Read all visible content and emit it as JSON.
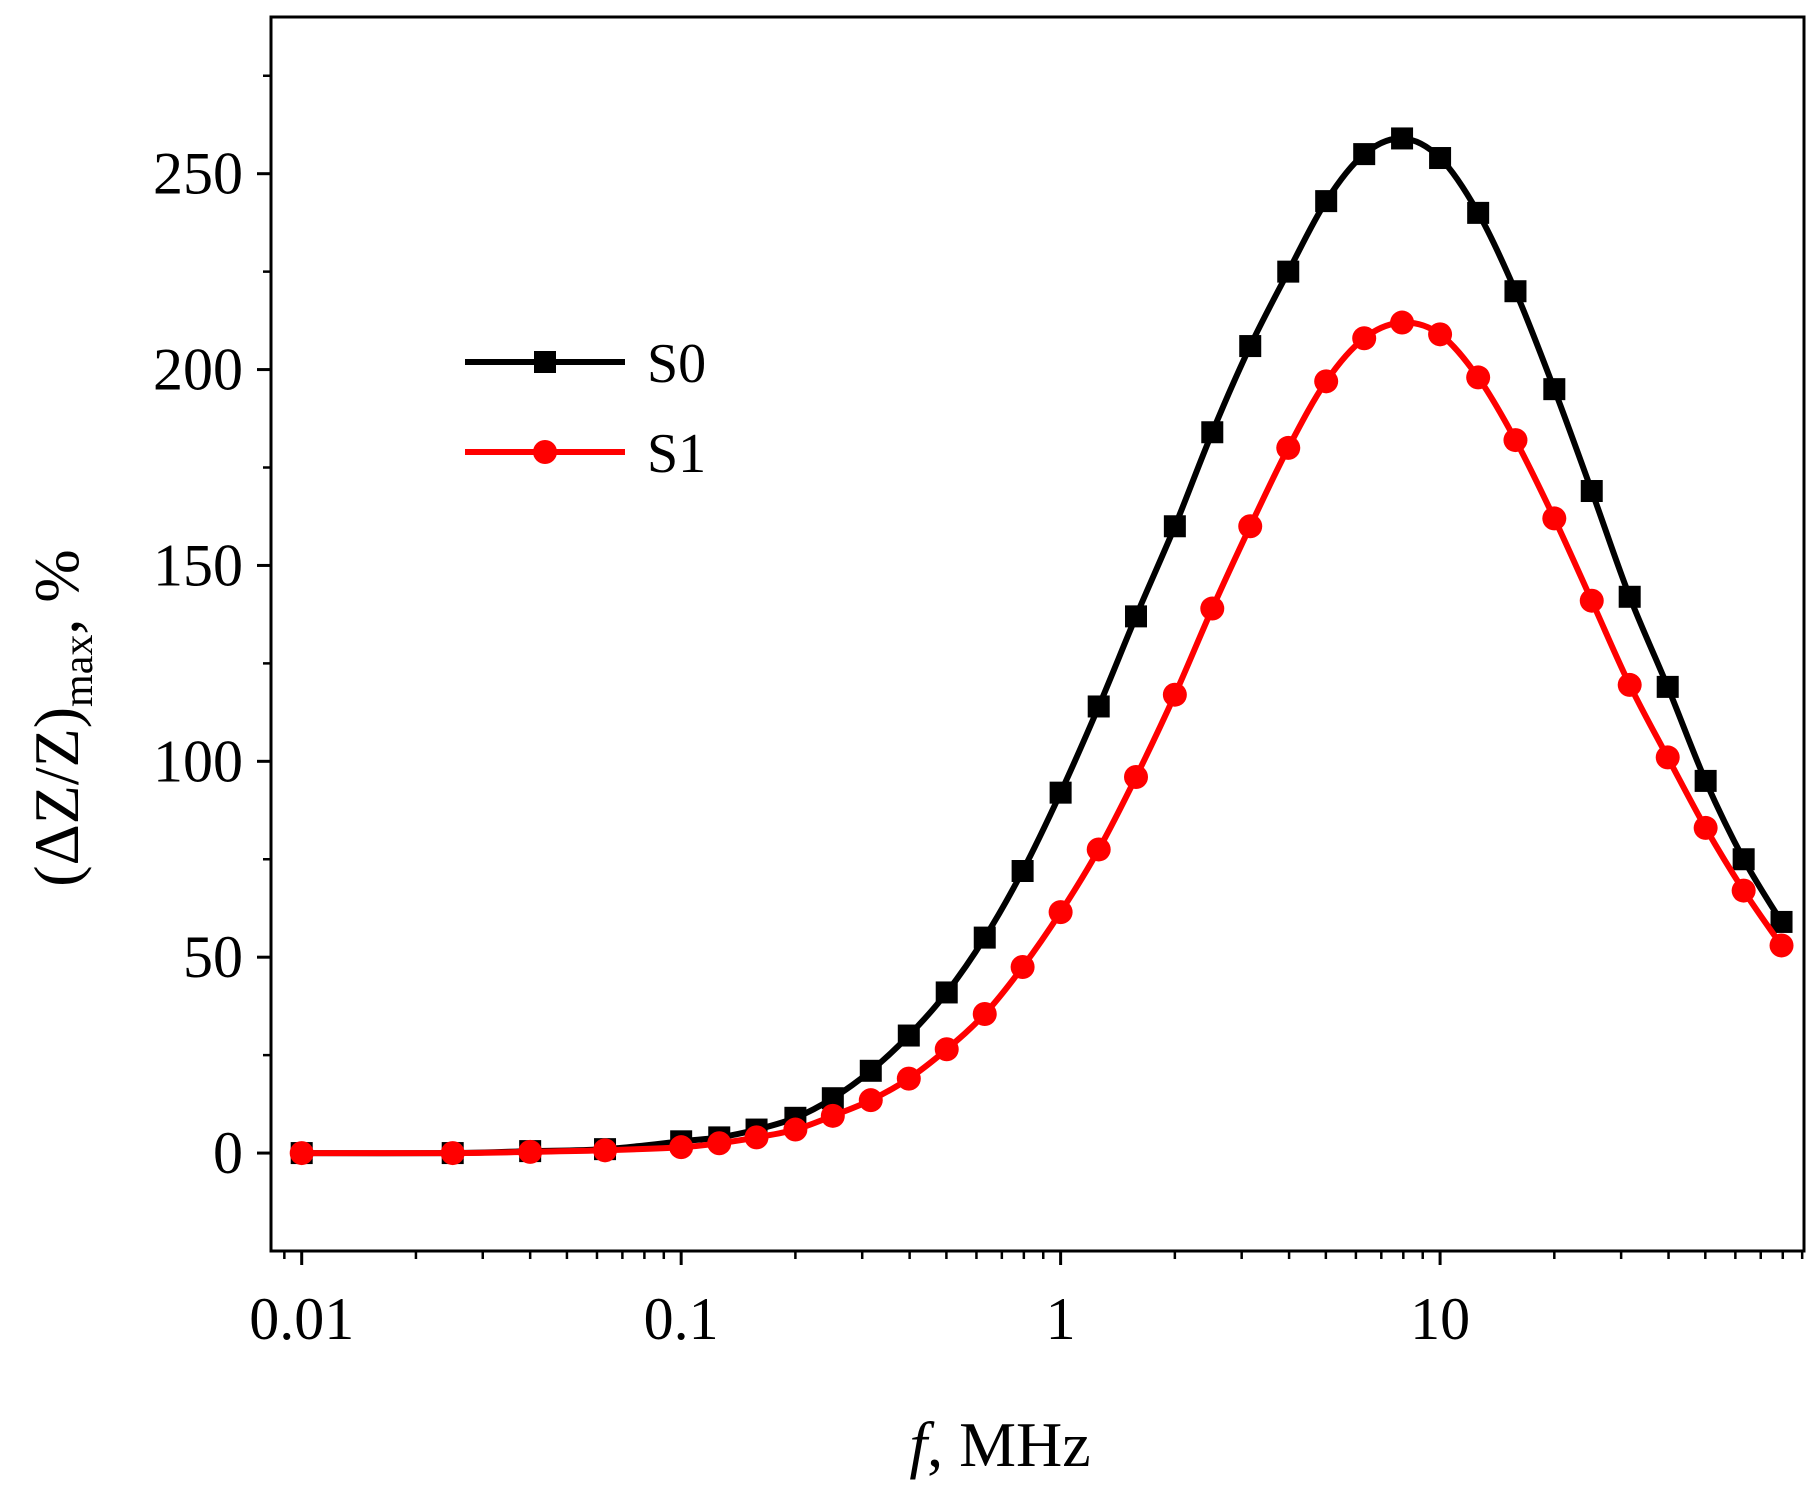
{
  "chart_data": {
    "type": "line",
    "title": "",
    "xlabel": {
      "italic": "f",
      "text": ", MHz"
    },
    "ylabel": {
      "pre": "(ΔZ/Z)",
      "sub": "max",
      "post": ", %"
    },
    "xscale": "log",
    "xlim": [
      0.0083,
      91
    ],
    "ylim": [
      -25,
      290
    ],
    "xticks": [
      0.01,
      0.1,
      1,
      10
    ],
    "xtick_labels": [
      "0.01",
      "0.1",
      "1",
      "10"
    ],
    "yticks": [
      0,
      50,
      100,
      150,
      200,
      250
    ],
    "ytick_labels": [
      "0",
      "50",
      "100",
      "150",
      "200",
      "250"
    ],
    "grid": false,
    "legend_position": "upper-left",
    "x": [
      0.01,
      0.025,
      0.04,
      0.063,
      0.1,
      0.126,
      0.158,
      0.2,
      0.251,
      0.316,
      0.398,
      0.501,
      0.631,
      0.794,
      1,
      1.26,
      1.58,
      2,
      2.51,
      3.16,
      3.98,
      5.01,
      6.31,
      7.94,
      10,
      12.6,
      15.8,
      20,
      25.1,
      31.6,
      39.8,
      50.1,
      63.1,
      79.4
    ],
    "series": [
      {
        "name": "S0",
        "color": "#000000",
        "marker": "square",
        "values": [
          0,
          0,
          0.5,
          1,
          3,
          4,
          6,
          9,
          14,
          21,
          30,
          41,
          55,
          72,
          92,
          114,
          137,
          160,
          184,
          206,
          225,
          243,
          255,
          259,
          254,
          240,
          220,
          195,
          169,
          142,
          119,
          95,
          75,
          59
        ]
      },
      {
        "name": "S1",
        "color": "#ff0000",
        "marker": "circle",
        "values": [
          0,
          0,
          0.3,
          0.7,
          1.5,
          2.5,
          4,
          6,
          9.5,
          13.5,
          19,
          26.5,
          35.5,
          47.5,
          61.5,
          77.5,
          96,
          117,
          139,
          160,
          180,
          197,
          208,
          212,
          209,
          198,
          182,
          162,
          141,
          119.5,
          101,
          83,
          67,
          53
        ]
      }
    ]
  }
}
